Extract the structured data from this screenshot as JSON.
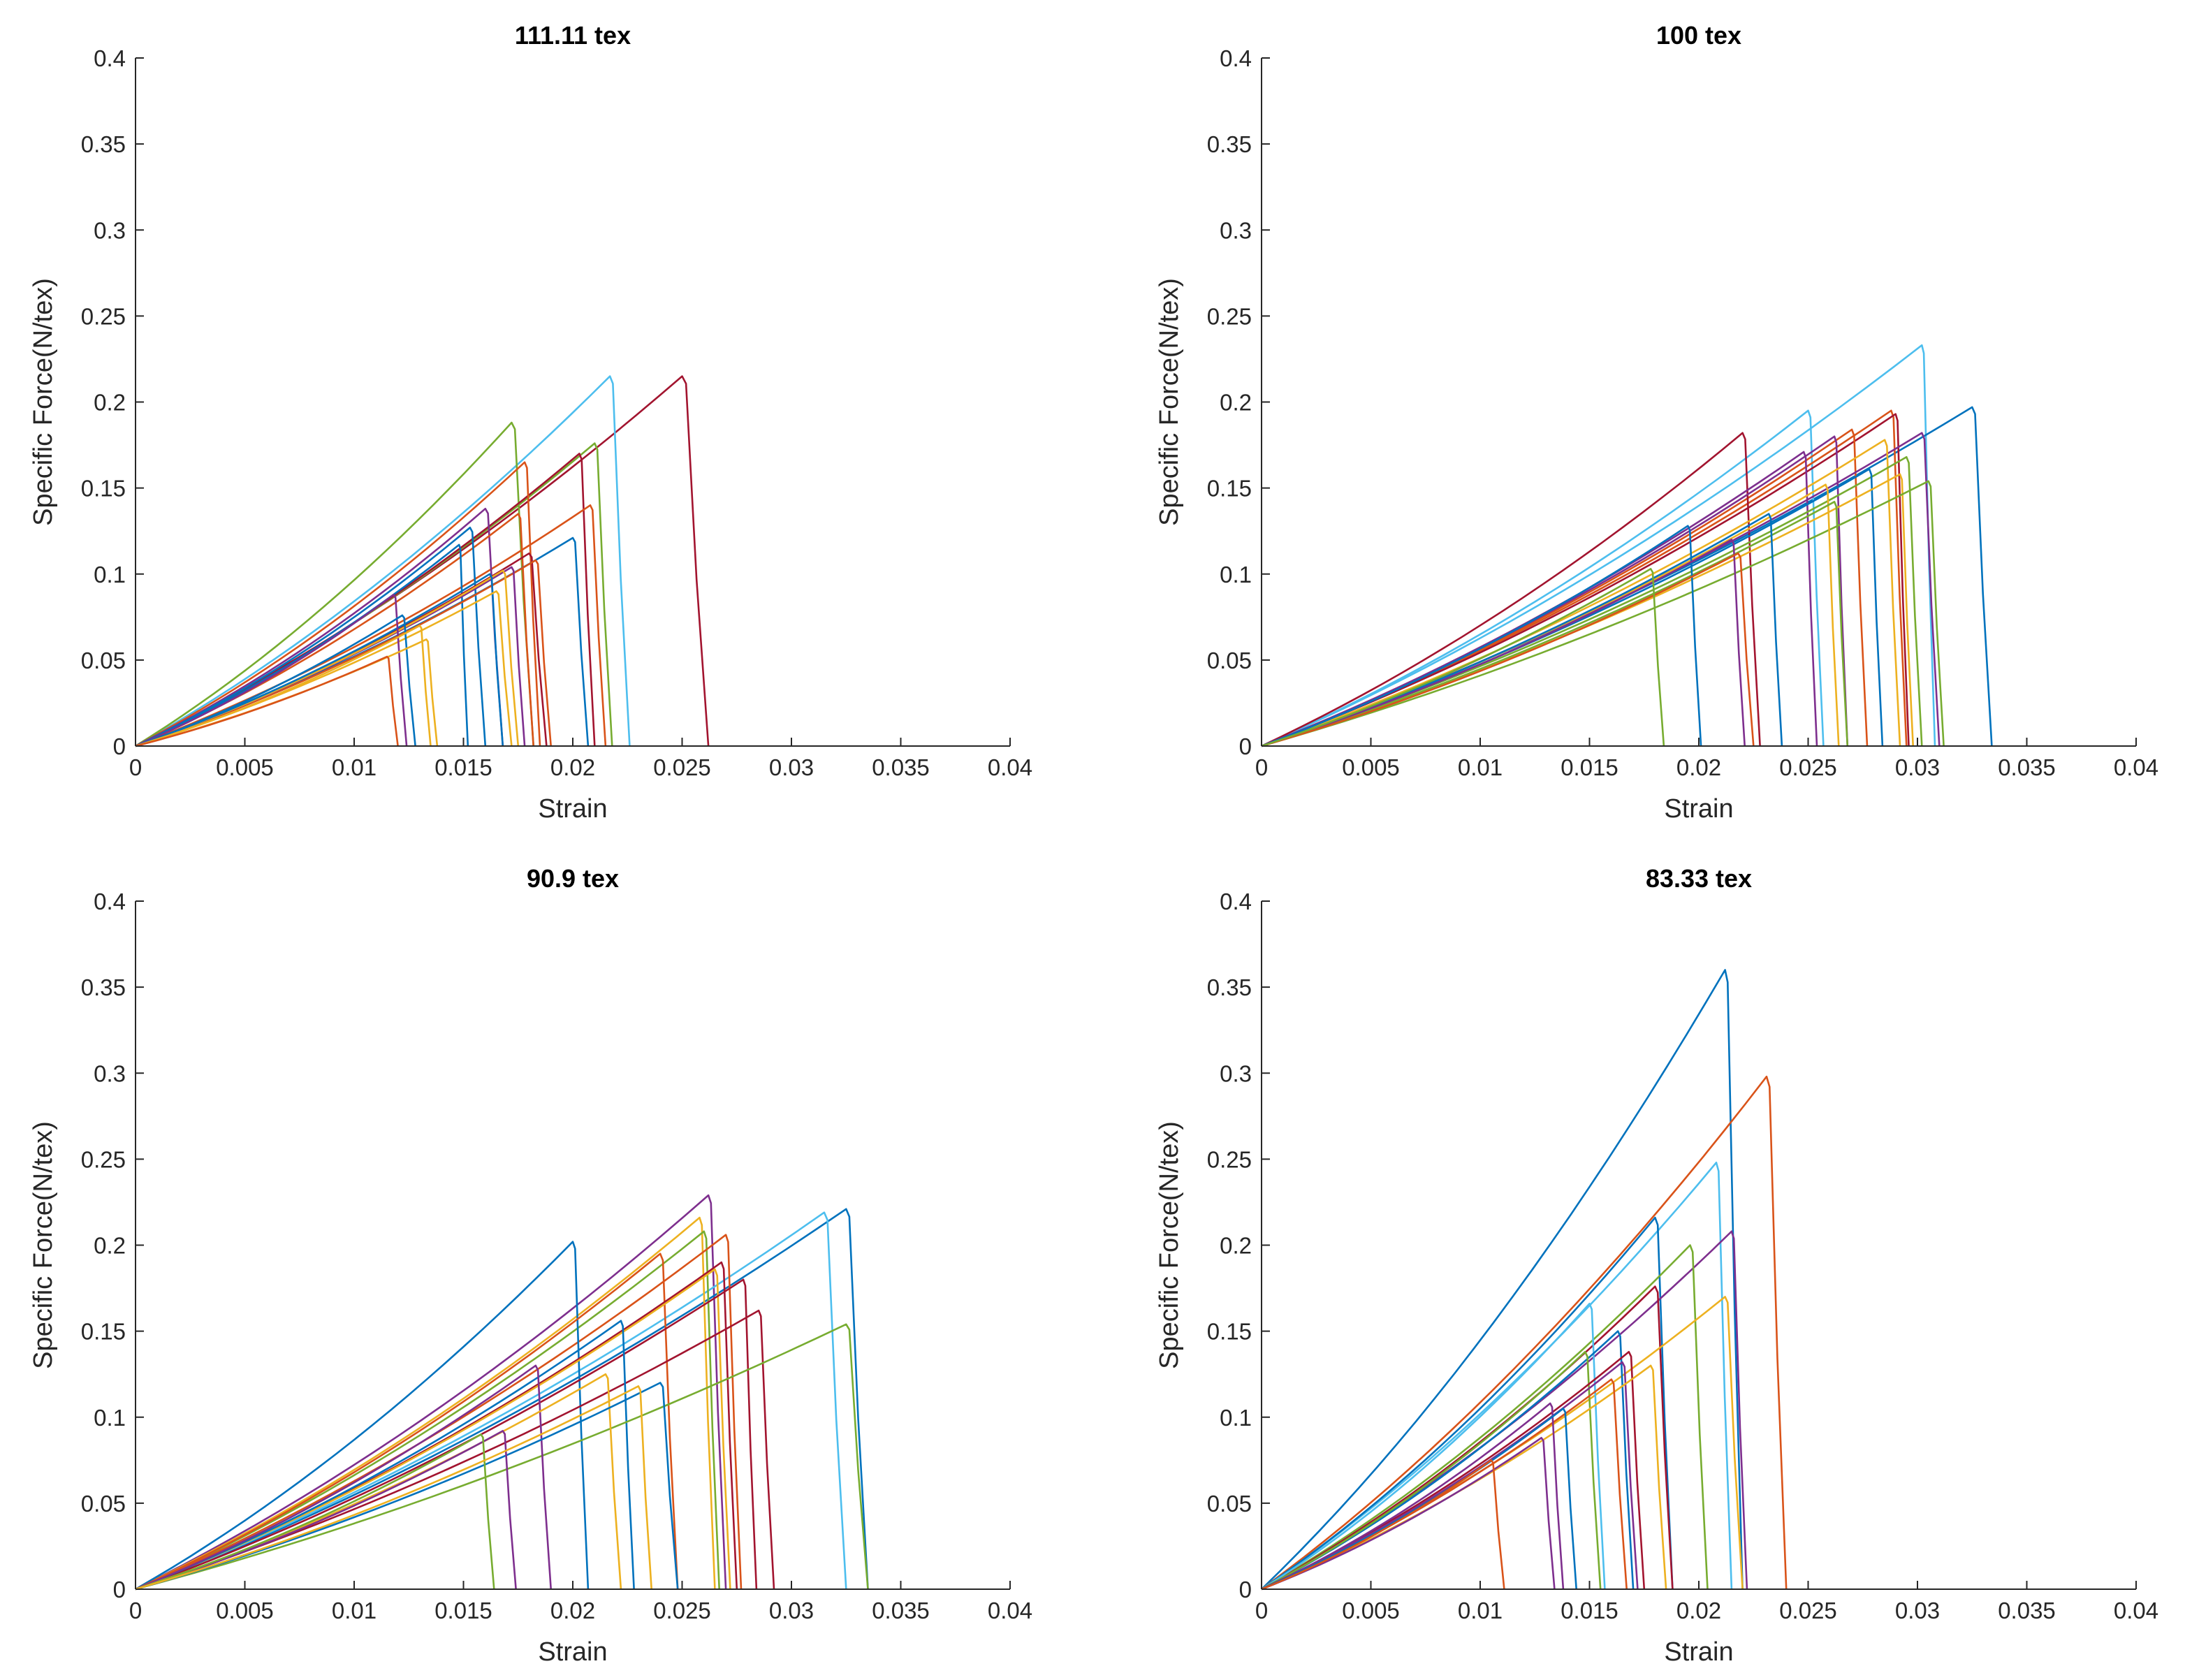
{
  "chart_data": [
    {
      "type": "line",
      "title": "111.11 tex",
      "xlabel": "Strain",
      "ylabel": "Specific Force(N/tex)",
      "xlim": [
        0,
        0.04
      ],
      "ylim": [
        0,
        0.4
      ],
      "xticks": [
        "0",
        "0.005",
        "0.01",
        "0.015",
        "0.02",
        "0.025",
        "0.03",
        "0.035",
        "0.04"
      ],
      "yticks": [
        "0",
        "0.05",
        "0.1",
        "0.15",
        "0.2",
        "0.25",
        "0.3",
        "0.35",
        "0.4"
      ],
      "series": [
        {
          "color": "#A2142F",
          "peak_x": 0.025,
          "peak_y": 0.215,
          "end_x": 0.0262
        },
        {
          "color": "#4DBEEE",
          "peak_x": 0.0217,
          "peak_y": 0.215,
          "end_x": 0.0226
        },
        {
          "color": "#77AC30",
          "peak_x": 0.0172,
          "peak_y": 0.188,
          "end_x": 0.0182
        },
        {
          "color": "#77AC30",
          "peak_x": 0.021,
          "peak_y": 0.176,
          "end_x": 0.0218
        },
        {
          "color": "#A2142F",
          "peak_x": 0.0203,
          "peak_y": 0.17,
          "end_x": 0.021
        },
        {
          "color": "#D95319",
          "peak_x": 0.0178,
          "peak_y": 0.165,
          "end_x": 0.0185
        },
        {
          "color": "#D95319",
          "peak_x": 0.0208,
          "peak_y": 0.14,
          "end_x": 0.0215
        },
        {
          "color": "#7E2F8E",
          "peak_x": 0.016,
          "peak_y": 0.138,
          "end_x": 0.0168
        },
        {
          "color": "#D95319",
          "peak_x": 0.0175,
          "peak_y": 0.135,
          "end_x": 0.0182
        },
        {
          "color": "#0072BD",
          "peak_x": 0.0153,
          "peak_y": 0.127,
          "end_x": 0.016
        },
        {
          "color": "#0072BD",
          "peak_x": 0.02,
          "peak_y": 0.121,
          "end_x": 0.0207
        },
        {
          "color": "#0072BD",
          "peak_x": 0.0148,
          "peak_y": 0.117,
          "end_x": 0.0152
        },
        {
          "color": "#A2142F",
          "peak_x": 0.018,
          "peak_y": 0.112,
          "end_x": 0.0188
        },
        {
          "color": "#D95319",
          "peak_x": 0.0183,
          "peak_y": 0.108,
          "end_x": 0.019
        },
        {
          "color": "#7E2F8E",
          "peak_x": 0.0172,
          "peak_y": 0.104,
          "end_x": 0.0178
        },
        {
          "color": "#EDB120",
          "peak_x": 0.0168,
          "peak_y": 0.102,
          "end_x": 0.0175
        },
        {
          "color": "#0072BD",
          "peak_x": 0.0162,
          "peak_y": 0.1,
          "end_x": 0.0168
        },
        {
          "color": "#EDB120",
          "peak_x": 0.0165,
          "peak_y": 0.09,
          "end_x": 0.0172
        },
        {
          "color": "#7E2F8E",
          "peak_x": 0.0118,
          "peak_y": 0.088,
          "end_x": 0.0124
        },
        {
          "color": "#0072BD",
          "peak_x": 0.0122,
          "peak_y": 0.076,
          "end_x": 0.0128
        },
        {
          "color": "#EDB120",
          "peak_x": 0.013,
          "peak_y": 0.07,
          "end_x": 0.0135
        },
        {
          "color": "#EDB120",
          "peak_x": 0.0133,
          "peak_y": 0.062,
          "end_x": 0.0138
        },
        {
          "color": "#D95319",
          "peak_x": 0.0115,
          "peak_y": 0.052,
          "end_x": 0.012
        }
      ]
    },
    {
      "type": "line",
      "title": "100 tex",
      "xlabel": "Strain",
      "ylabel": "Specific Force(N/tex)",
      "xlim": [
        0,
        0.04
      ],
      "ylim": [
        0,
        0.4
      ],
      "xticks": [
        "0",
        "0.005",
        "0.01",
        "0.015",
        "0.02",
        "0.025",
        "0.03",
        "0.035",
        "0.04"
      ],
      "yticks": [
        "0",
        "0.05",
        "0.1",
        "0.15",
        "0.2",
        "0.25",
        "0.3",
        "0.35",
        "0.4"
      ],
      "series": [
        {
          "color": "#4DBEEE",
          "peak_x": 0.0302,
          "peak_y": 0.233,
          "end_x": 0.0308
        },
        {
          "color": "#0072BD",
          "peak_x": 0.0325,
          "peak_y": 0.197,
          "end_x": 0.0334
        },
        {
          "color": "#4DBEEE",
          "peak_x": 0.025,
          "peak_y": 0.195,
          "end_x": 0.0257
        },
        {
          "color": "#D95319",
          "peak_x": 0.0288,
          "peak_y": 0.195,
          "end_x": 0.0295
        },
        {
          "color": "#A2142F",
          "peak_x": 0.029,
          "peak_y": 0.193,
          "end_x": 0.0296
        },
        {
          "color": "#D95319",
          "peak_x": 0.027,
          "peak_y": 0.184,
          "end_x": 0.0277
        },
        {
          "color": "#A2142F",
          "peak_x": 0.022,
          "peak_y": 0.182,
          "end_x": 0.0228
        },
        {
          "color": "#7E2F8E",
          "peak_x": 0.0302,
          "peak_y": 0.182,
          "end_x": 0.031
        },
        {
          "color": "#7E2F8E",
          "peak_x": 0.0262,
          "peak_y": 0.18,
          "end_x": 0.0268
        },
        {
          "color": "#EDB120",
          "peak_x": 0.0285,
          "peak_y": 0.178,
          "end_x": 0.0292
        },
        {
          "color": "#7E2F8E",
          "peak_x": 0.0248,
          "peak_y": 0.171,
          "end_x": 0.0254
        },
        {
          "color": "#77AC30",
          "peak_x": 0.0295,
          "peak_y": 0.168,
          "end_x": 0.0302
        },
        {
          "color": "#0072BD",
          "peak_x": 0.0278,
          "peak_y": 0.161,
          "end_x": 0.0284
        },
        {
          "color": "#EDB120",
          "peak_x": 0.0292,
          "peak_y": 0.158,
          "end_x": 0.0298
        },
        {
          "color": "#77AC30",
          "peak_x": 0.0305,
          "peak_y": 0.154,
          "end_x": 0.0312
        },
        {
          "color": "#EDB120",
          "peak_x": 0.0258,
          "peak_y": 0.152,
          "end_x": 0.0264
        },
        {
          "color": "#77AC30",
          "peak_x": 0.0262,
          "peak_y": 0.142,
          "end_x": 0.0268
        },
        {
          "color": "#0072BD",
          "peak_x": 0.0232,
          "peak_y": 0.135,
          "end_x": 0.0238
        },
        {
          "color": "#0072BD",
          "peak_x": 0.0195,
          "peak_y": 0.128,
          "end_x": 0.0201
        },
        {
          "color": "#7E2F8E",
          "peak_x": 0.0215,
          "peak_y": 0.12,
          "end_x": 0.0221
        },
        {
          "color": "#D95319",
          "peak_x": 0.0218,
          "peak_y": 0.112,
          "end_x": 0.0225
        },
        {
          "color": "#77AC30",
          "peak_x": 0.0178,
          "peak_y": 0.103,
          "end_x": 0.0184
        }
      ]
    },
    {
      "type": "line",
      "title": "90.9 tex",
      "xlabel": "Strain",
      "ylabel": "Specific Force(N/tex)",
      "xlim": [
        0,
        0.04
      ],
      "ylim": [
        0,
        0.4
      ],
      "xticks": [
        "0",
        "0.005",
        "0.01",
        "0.015",
        "0.02",
        "0.025",
        "0.03",
        "0.035",
        "0.04"
      ],
      "yticks": [
        "0",
        "0.05",
        "0.1",
        "0.15",
        "0.2",
        "0.25",
        "0.3",
        "0.35",
        "0.4"
      ],
      "series": [
        {
          "color": "#7E2F8E",
          "peak_x": 0.0262,
          "peak_y": 0.229,
          "end_x": 0.027
        },
        {
          "color": "#0072BD",
          "peak_x": 0.0325,
          "peak_y": 0.221,
          "end_x": 0.0335
        },
        {
          "color": "#4DBEEE",
          "peak_x": 0.0315,
          "peak_y": 0.219,
          "end_x": 0.0325
        },
        {
          "color": "#EDB120",
          "peak_x": 0.0258,
          "peak_y": 0.216,
          "end_x": 0.0265
        },
        {
          "color": "#77AC30",
          "peak_x": 0.026,
          "peak_y": 0.208,
          "end_x": 0.0267
        },
        {
          "color": "#D95319",
          "peak_x": 0.027,
          "peak_y": 0.206,
          "end_x": 0.0277
        },
        {
          "color": "#0072BD",
          "peak_x": 0.02,
          "peak_y": 0.202,
          "end_x": 0.0207
        },
        {
          "color": "#D95319",
          "peak_x": 0.024,
          "peak_y": 0.195,
          "end_x": 0.0248
        },
        {
          "color": "#A2142F",
          "peak_x": 0.0268,
          "peak_y": 0.19,
          "end_x": 0.0275
        },
        {
          "color": "#EDB120",
          "peak_x": 0.0265,
          "peak_y": 0.186,
          "end_x": 0.0272
        },
        {
          "color": "#A2142F",
          "peak_x": 0.0278,
          "peak_y": 0.18,
          "end_x": 0.0284
        },
        {
          "color": "#A2142F",
          "peak_x": 0.0285,
          "peak_y": 0.162,
          "end_x": 0.0292
        },
        {
          "color": "#0072BD",
          "peak_x": 0.0222,
          "peak_y": 0.156,
          "end_x": 0.0228
        },
        {
          "color": "#77AC30",
          "peak_x": 0.0325,
          "peak_y": 0.154,
          "end_x": 0.0335
        },
        {
          "color": "#7E2F8E",
          "peak_x": 0.0183,
          "peak_y": 0.13,
          "end_x": 0.019
        },
        {
          "color": "#EDB120",
          "peak_x": 0.0215,
          "peak_y": 0.125,
          "end_x": 0.0222
        },
        {
          "color": "#0072BD",
          "peak_x": 0.024,
          "peak_y": 0.12,
          "end_x": 0.0248
        },
        {
          "color": "#7E2F8E",
          "peak_x": 0.0168,
          "peak_y": 0.092,
          "end_x": 0.0174
        },
        {
          "color": "#77AC30",
          "peak_x": 0.0158,
          "peak_y": 0.09,
          "end_x": 0.0164
        },
        {
          "color": "#EDB120",
          "peak_x": 0.023,
          "peak_y": 0.118,
          "end_x": 0.0236
        }
      ]
    },
    {
      "type": "line",
      "title": "83.33 tex",
      "xlabel": "Strain",
      "ylabel": "Specific Force(N/tex)",
      "xlim": [
        0,
        0.04
      ],
      "ylim": [
        0,
        0.4
      ],
      "xticks": [
        "0",
        "0.005",
        "0.01",
        "0.015",
        "0.02",
        "0.025",
        "0.03",
        "0.035",
        "0.04"
      ],
      "yticks": [
        "0",
        "0.05",
        "0.1",
        "0.15",
        "0.2",
        "0.25",
        "0.3",
        "0.35",
        "0.4"
      ],
      "series": [
        {
          "color": "#0072BD",
          "peak_x": 0.0212,
          "peak_y": 0.36,
          "end_x": 0.022
        },
        {
          "color": "#D95319",
          "peak_x": 0.0231,
          "peak_y": 0.298,
          "end_x": 0.024
        },
        {
          "color": "#4DBEEE",
          "peak_x": 0.0208,
          "peak_y": 0.248,
          "end_x": 0.0215
        },
        {
          "color": "#0072BD",
          "peak_x": 0.018,
          "peak_y": 0.216,
          "end_x": 0.0188
        },
        {
          "color": "#7E2F8E",
          "peak_x": 0.0215,
          "peak_y": 0.208,
          "end_x": 0.0222
        },
        {
          "color": "#77AC30",
          "peak_x": 0.0196,
          "peak_y": 0.2,
          "end_x": 0.0204
        },
        {
          "color": "#A2142F",
          "peak_x": 0.018,
          "peak_y": 0.176,
          "end_x": 0.0188
        },
        {
          "color": "#EDB120",
          "peak_x": 0.0212,
          "peak_y": 0.17,
          "end_x": 0.022
        },
        {
          "color": "#4DBEEE",
          "peak_x": 0.015,
          "peak_y": 0.166,
          "end_x": 0.0157
        },
        {
          "color": "#0072BD",
          "peak_x": 0.0163,
          "peak_y": 0.15,
          "end_x": 0.017
        },
        {
          "color": "#77AC30",
          "peak_x": 0.0148,
          "peak_y": 0.138,
          "end_x": 0.0155
        },
        {
          "color": "#A2142F",
          "peak_x": 0.0168,
          "peak_y": 0.138,
          "end_x": 0.0175
        },
        {
          "color": "#7E2F8E",
          "peak_x": 0.0165,
          "peak_y": 0.132,
          "end_x": 0.0172
        },
        {
          "color": "#EDB120",
          "peak_x": 0.0178,
          "peak_y": 0.13,
          "end_x": 0.0185
        },
        {
          "color": "#D95319",
          "peak_x": 0.016,
          "peak_y": 0.122,
          "end_x": 0.0167
        },
        {
          "color": "#7E2F8E",
          "peak_x": 0.0132,
          "peak_y": 0.108,
          "end_x": 0.0138
        },
        {
          "color": "#0072BD",
          "peak_x": 0.0138,
          "peak_y": 0.105,
          "end_x": 0.0144
        },
        {
          "color": "#7E2F8E",
          "peak_x": 0.0128,
          "peak_y": 0.088,
          "end_x": 0.0134
        },
        {
          "color": "#D95319",
          "peak_x": 0.0105,
          "peak_y": 0.075,
          "end_x": 0.0111
        }
      ]
    }
  ]
}
